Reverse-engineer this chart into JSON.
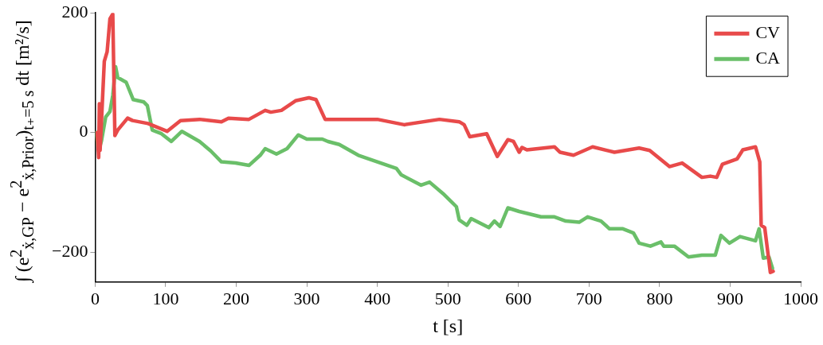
{
  "chart_data": {
    "type": "line",
    "xlabel": "t [s]",
    "ylabel": "∫ (e$^{2}$$_{ẋ,GP}$ − e$^{2}$$_{ẋ,Prior}$)$_{t₊=5 s}$ dt [m²/s]",
    "xlim": [
      0,
      1000
    ],
    "xticks": [
      0,
      100,
      200,
      300,
      400,
      500,
      600,
      700,
      800,
      900,
      1000
    ],
    "ylim": [
      -250,
      200
    ],
    "yticks": [
      -200,
      0,
      200
    ],
    "grid": false,
    "legend": "top right",
    "marker": "none",
    "line_style": "solid",
    "series": [
      {
        "name": "CV",
        "color": "#e84a4a",
        "x": [
          3,
          5,
          6,
          7,
          13,
          17,
          21,
          25,
          28,
          32,
          46,
          53,
          75,
          102,
          121,
          148,
          179,
          189,
          218,
          241,
          249,
          264,
          284,
          303,
          313,
          326,
          330,
          400,
          438,
          488,
          516,
          523,
          531,
          555,
          570,
          585,
          593,
          601,
          605,
          612,
          651,
          659,
          678,
          705,
          736,
          771,
          786,
          814,
          832,
          860,
          872,
          881,
          889,
          910,
          918,
          936,
          942,
          944,
          949,
          957,
          961
        ],
        "values": [
          0,
          -42,
          48,
          -30,
          119,
          135,
          190,
          198,
          -5,
          4,
          24,
          20,
          15,
          2,
          20,
          22,
          18,
          24,
          22,
          37,
          34,
          37,
          53,
          58,
          55,
          22,
          22,
          22,
          13,
          22,
          18,
          13,
          -7,
          -2,
          -40,
          -12,
          -15,
          -33,
          -25,
          -29,
          -24,
          -33,
          -38,
          -24,
          -33,
          -26,
          -30,
          -57,
          -51,
          -75,
          -73,
          -75,
          -53,
          -44,
          -29,
          -24,
          -49,
          -155,
          -159,
          -234,
          -232
        ]
      },
      {
        "name": "CA",
        "color": "#6abf69",
        "x": [
          1.5,
          5,
          9,
          15,
          21,
          25,
          29,
          32,
          44,
          54,
          69,
          74,
          81,
          94,
          108,
          123,
          148,
          164,
          179,
          199,
          218,
          234,
          241,
          257,
          272,
          288,
          300,
          322,
          330,
          346,
          373,
          400,
          427,
          434,
          462,
          474,
          493,
          512,
          516,
          527,
          533,
          558,
          566,
          574,
          585,
          601,
          632,
          651,
          667,
          686,
          698,
          717,
          729,
          748,
          763,
          771,
          787,
          802,
          806,
          821,
          841,
          860,
          879,
          887,
          899,
          914,
          936,
          941,
          947,
          955,
          960
        ],
        "values": [
          0,
          -31,
          -14,
          26,
          35,
          62,
          110,
          92,
          84,
          55,
          51,
          45,
          4,
          -2,
          -15,
          2,
          -15,
          -31,
          -49,
          -51,
          -55,
          -38,
          -27,
          -36,
          -27,
          -4,
          -11,
          -11,
          -15,
          -20,
          -38,
          -49,
          -60,
          -71,
          -88,
          -83,
          -102,
          -124,
          -146,
          -155,
          -144,
          -159,
          -148,
          -157,
          -126,
          -132,
          -141,
          -141,
          -148,
          -150,
          -141,
          -148,
          -161,
          -161,
          -168,
          -185,
          -190,
          -183,
          -190,
          -190,
          -208,
          -205,
          -205,
          -172,
          -185,
          -174,
          -181,
          -161,
          -210,
          -208,
          -227
        ]
      }
    ]
  }
}
